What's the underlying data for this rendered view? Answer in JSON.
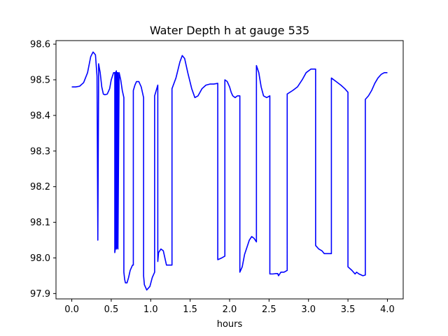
{
  "chart_data": {
    "type": "line",
    "title": "Water Depth h at gauge 535",
    "xlabel": "hours",
    "ylabel": "",
    "xlim": [
      -0.2,
      4.2
    ],
    "ylim": [
      97.885,
      98.61
    ],
    "xticks": [
      0.0,
      0.5,
      1.0,
      1.5,
      2.0,
      2.5,
      3.0,
      3.5,
      4.0
    ],
    "xtick_labels": [
      "0.0",
      "0.5",
      "1.0",
      "1.5",
      "2.0",
      "2.5",
      "3.0",
      "3.5",
      "4.0"
    ],
    "yticks": [
      97.9,
      98.0,
      98.1,
      98.2,
      98.3,
      98.4,
      98.5,
      98.6
    ],
    "ytick_labels": [
      "97.9",
      "98.0",
      "98.1",
      "98.2",
      "98.3",
      "98.4",
      "98.5",
      "98.6"
    ],
    "grid": false,
    "series": [
      {
        "color": "#0000ff",
        "x": [
          0.0,
          0.05,
          0.1,
          0.15,
          0.2,
          0.24,
          0.27,
          0.3,
          0.32,
          0.33,
          0.33,
          0.34,
          0.34,
          0.36,
          0.38,
          0.4,
          0.42,
          0.45,
          0.48,
          0.5,
          0.53,
          0.545,
          0.545,
          0.555,
          0.555,
          0.565,
          0.565,
          0.575,
          0.575,
          0.585,
          0.585,
          0.6,
          0.62,
          0.64,
          0.66,
          0.66,
          0.67,
          0.68,
          0.7,
          0.72,
          0.74,
          0.77,
          0.78,
          0.78,
          0.8,
          0.82,
          0.85,
          0.88,
          0.91,
          0.91,
          0.92,
          0.95,
          0.99,
          1.02,
          1.05,
          1.05,
          1.07,
          1.09,
          1.09,
          1.1,
          1.13,
          1.16,
          1.2,
          1.27,
          1.27,
          1.32,
          1.37,
          1.4,
          1.43,
          1.47,
          1.52,
          1.56,
          1.6,
          1.65,
          1.7,
          1.75,
          1.8,
          1.85,
          1.85,
          1.9,
          1.94,
          1.94,
          1.97,
          2.0,
          2.02,
          2.04,
          2.07,
          2.1,
          2.13,
          2.13,
          2.16,
          2.19,
          2.22,
          2.25,
          2.28,
          2.31,
          2.34,
          2.34,
          2.37,
          2.4,
          2.43,
          2.47,
          2.51,
          2.51,
          2.55,
          2.58,
          2.61,
          2.62,
          2.65,
          2.69,
          2.73,
          2.73,
          2.8,
          2.86,
          2.92,
          2.97,
          3.03,
          3.07,
          3.09,
          3.09,
          3.13,
          3.17,
          3.2,
          3.25,
          3.29,
          3.29,
          3.35,
          3.41,
          3.46,
          3.5,
          3.5,
          3.55,
          3.59,
          3.61,
          3.64,
          3.67,
          3.69,
          3.72,
          3.72,
          3.76,
          3.8,
          3.84,
          3.88,
          3.92,
          3.96,
          4.0
        ],
        "y": [
          98.48,
          98.48,
          98.482,
          98.492,
          98.52,
          98.565,
          98.578,
          98.57,
          98.51,
          98.06,
          98.05,
          98.49,
          98.545,
          98.52,
          98.48,
          98.46,
          98.458,
          98.46,
          98.475,
          98.5,
          98.52,
          98.52,
          98.015,
          98.03,
          98.52,
          98.525,
          98.025,
          98.03,
          98.52,
          98.52,
          98.025,
          98.52,
          98.5,
          98.47,
          98.45,
          97.96,
          97.94,
          97.93,
          97.93,
          97.945,
          97.965,
          97.98,
          97.98,
          98.47,
          98.485,
          98.495,
          98.495,
          98.48,
          98.45,
          97.95,
          97.925,
          97.91,
          97.92,
          97.945,
          97.96,
          98.455,
          98.47,
          98.485,
          97.99,
          98.015,
          98.025,
          98.02,
          97.98,
          97.98,
          98.475,
          98.505,
          98.55,
          98.568,
          98.56,
          98.52,
          98.475,
          98.45,
          98.455,
          98.475,
          98.485,
          98.488,
          98.488,
          98.49,
          97.995,
          98.0,
          98.005,
          98.5,
          98.495,
          98.48,
          98.465,
          98.455,
          98.45,
          98.455,
          98.455,
          97.96,
          97.975,
          98.01,
          98.03,
          98.05,
          98.06,
          98.055,
          98.045,
          98.54,
          98.52,
          98.48,
          98.455,
          98.45,
          98.455,
          97.955,
          97.955,
          97.956,
          97.956,
          97.95,
          97.96,
          97.96,
          97.965,
          98.46,
          98.47,
          98.48,
          98.5,
          98.52,
          98.53,
          98.53,
          98.53,
          98.035,
          98.025,
          98.02,
          98.012,
          98.012,
          98.012,
          98.505,
          98.495,
          98.485,
          98.475,
          98.465,
          97.975,
          97.965,
          97.955,
          97.96,
          97.955,
          97.952,
          97.95,
          97.952,
          98.445,
          98.455,
          98.47,
          98.49,
          98.505,
          98.515,
          98.52,
          98.52
        ]
      }
    ]
  }
}
